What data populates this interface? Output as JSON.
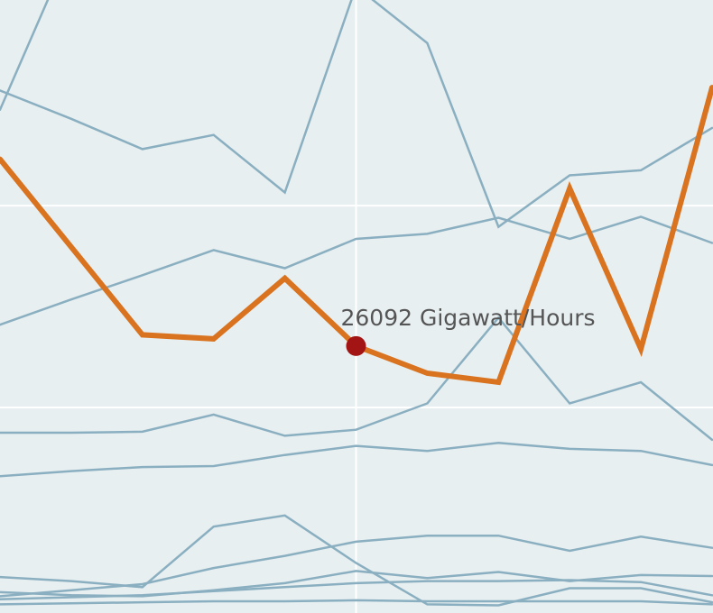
{
  "chart_data": {
    "type": "line",
    "categories": [
      null,
      null,
      null,
      null,
      null,
      null,
      null,
      null,
      null,
      null,
      null
    ],
    "ylim": [
      -360,
      60370
    ],
    "yticks": [
      20000,
      40000
    ],
    "grid": true,
    "series": [
      {
        "color": "#8aafc0",
        "values": [
          51400,
          48600,
          45600,
          47000,
          41300,
          61700,
          56100,
          37900,
          43000,
          43500,
          47700
        ]
      },
      {
        "color": "#8aafc0",
        "values": [
          49500,
          65700,
          null,
          null,
          null,
          null,
          null,
          null,
          null,
          null,
          null
        ]
      },
      {
        "color": "#8aafc0",
        "values": [
          28200,
          30700,
          33100,
          35600,
          33800,
          36700,
          37200,
          38800,
          36700,
          38900,
          36300
        ]
      },
      {
        "color": "#8aafc0",
        "values": [
          17500,
          17500,
          17600,
          19300,
          17200,
          17800,
          20400,
          28900,
          20400,
          22500,
          16800
        ]
      },
      {
        "color": "#8aafc0",
        "values": [
          13200,
          13700,
          14100,
          14200,
          15300,
          16200,
          15700,
          16500,
          15900,
          15700,
          14300
        ]
      },
      {
        "color": "#8aafc0",
        "values": [
          3200,
          2800,
          2200,
          8200,
          9300,
          4600,
          500,
          400,
          2100,
          2100,
          700
        ]
      },
      {
        "color": "#8aafc0",
        "values": [
          1300,
          1900,
          2500,
          4100,
          5300,
          6700,
          7300,
          7300,
          5800,
          7200,
          6100
        ]
      },
      {
        "color": "#8aafc0",
        "values": [
          1700,
          1400,
          1300,
          1900,
          2600,
          3800,
          3100,
          3700,
          2800,
          3400,
          3300
        ]
      },
      {
        "color": "#8aafc0",
        "values": [
          1000,
          1200,
          1400,
          1800,
          2200,
          2600,
          2800,
          2800,
          2900,
          2700,
          1400
        ]
      },
      {
        "color": "#8aafc0",
        "values": [
          500,
          600,
          700,
          800,
          800,
          900,
          800,
          800,
          800,
          800,
          500
        ]
      },
      {
        "color": "#d9731f",
        "values": [
          44600,
          35900,
          27200,
          26800,
          32800,
          26092,
          23400,
          22500,
          41700,
          25800,
          51700
        ],
        "value_labels": [
          null,
          null,
          null,
          null,
          null,
          "26092 Gigawatt/Hours",
          null,
          null,
          null,
          null,
          null
        ]
      }
    ]
  }
}
